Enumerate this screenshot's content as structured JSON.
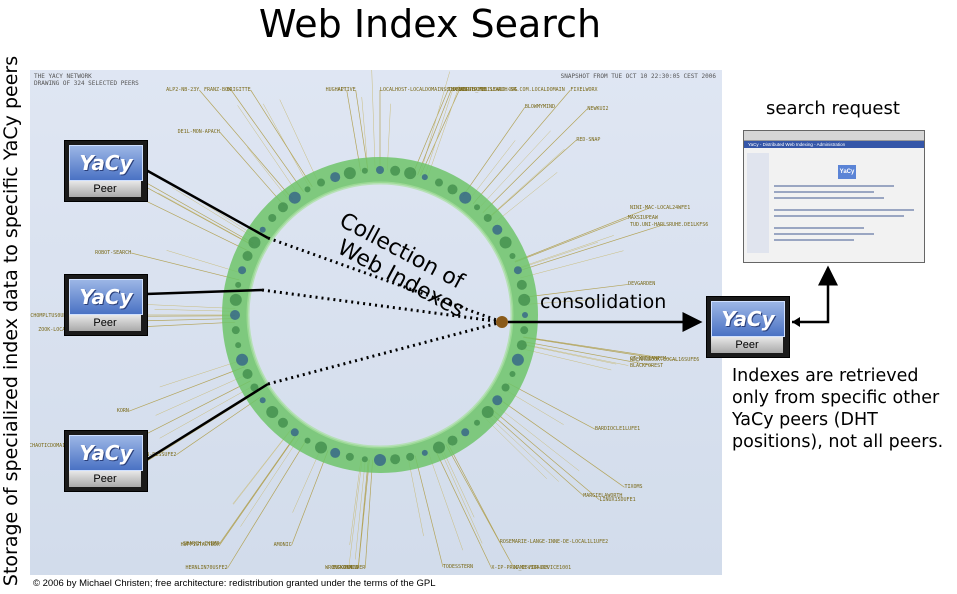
{
  "title": "Web Index Search",
  "vertical_label": "Storage of specialized index data to specific YaCy peers",
  "network_panel": {
    "header_left_1": "THE YACY NETWORK",
    "header_left_2": "DRAWING OF 324 SELECTED PEERS",
    "header_right": "SNAPSHOT FROM TUE OCT 10 22:30:05 CEST 2006",
    "peer_names": [
      "LOCALHOST-LOCALDOMAINS8DUFE6",
      "WOLVERINE.SEARCH-SR.COM.LOCALDOMAIN",
      "TUXLANDTUXFE1",
      "HARKORTH_MOBILINUX.ORG",
      "BLOWMYMIND",
      "NEWKUI2",
      "FIXELWORX",
      "RED-SNAP",
      "MAXSIUPEAW",
      "TUD.UNI-HARLSRUHE.DE1LKFS6",
      "NINI-MAC-LOCAL24WFE1",
      "DEVGARDEN",
      "BLACKFOREST",
      "NDEAHSBOOK.LOCAL16SUFE6",
      "CT_MEDIANTEM",
      "BARDIOCLE1LUFE1",
      "LINUX15DUFE1",
      "TIXOMS",
      "MARGIELAWORTH",
      "ROSEMARIE-LANGE-INNE-DE-LOCAL1L1UFE2",
      "X-IP-PROC_DEVIDAUGY",
      "NAME-FOR-DEVICE1001",
      "TODESSTERN",
      "WRONG-GE4I9",
      "KOAMIS",
      "EUROFOUNDER",
      "AMONIC",
      "HUFFISTACYBOX",
      "HERNLIN70USFE2",
      "SEARCH-CHIMP",
      "ELENA-THN-TU-BERLIN-DESSUFE2",
      "CHAOTICDOMAIN-UOLFSRUDEL1E1UFE1",
      "TANTIVE.DYNDNS.ORG",
      "KORN",
      "SMYXX",
      "CHOMPLTUS0UD10UFE0",
      "ZOOK-LOCAL6DUFE1",
      "ROBOT-SEARCH",
      "ASFRUST",
      "DEBLU",
      "SUPERKOMPLEX",
      "DE1L-MON-APACH",
      "FRANZ-BOX",
      "ALP2-NB-23Y",
      "BRIGITTE",
      "HUGHAPT",
      "ACTIVE"
    ]
  },
  "diagram": {
    "collection_line1": "Collection of",
    "collection_line2": "Web Indexes",
    "consolidation": "consolidation",
    "peer_logo": "YaCy",
    "peer_caption": "Peer"
  },
  "search_request_label": "search request",
  "screenshot": {
    "window_title": "YaCy - Distributed Web Indexing - Administration",
    "logo": "YaCy"
  },
  "note": "Indexes are retrieved only from specific other YaCy peers (DHT positions), not all peers.",
  "copyright": "© 2006 by Michael Christen; free architecture: redistribution granted under the terms of the GPL"
}
